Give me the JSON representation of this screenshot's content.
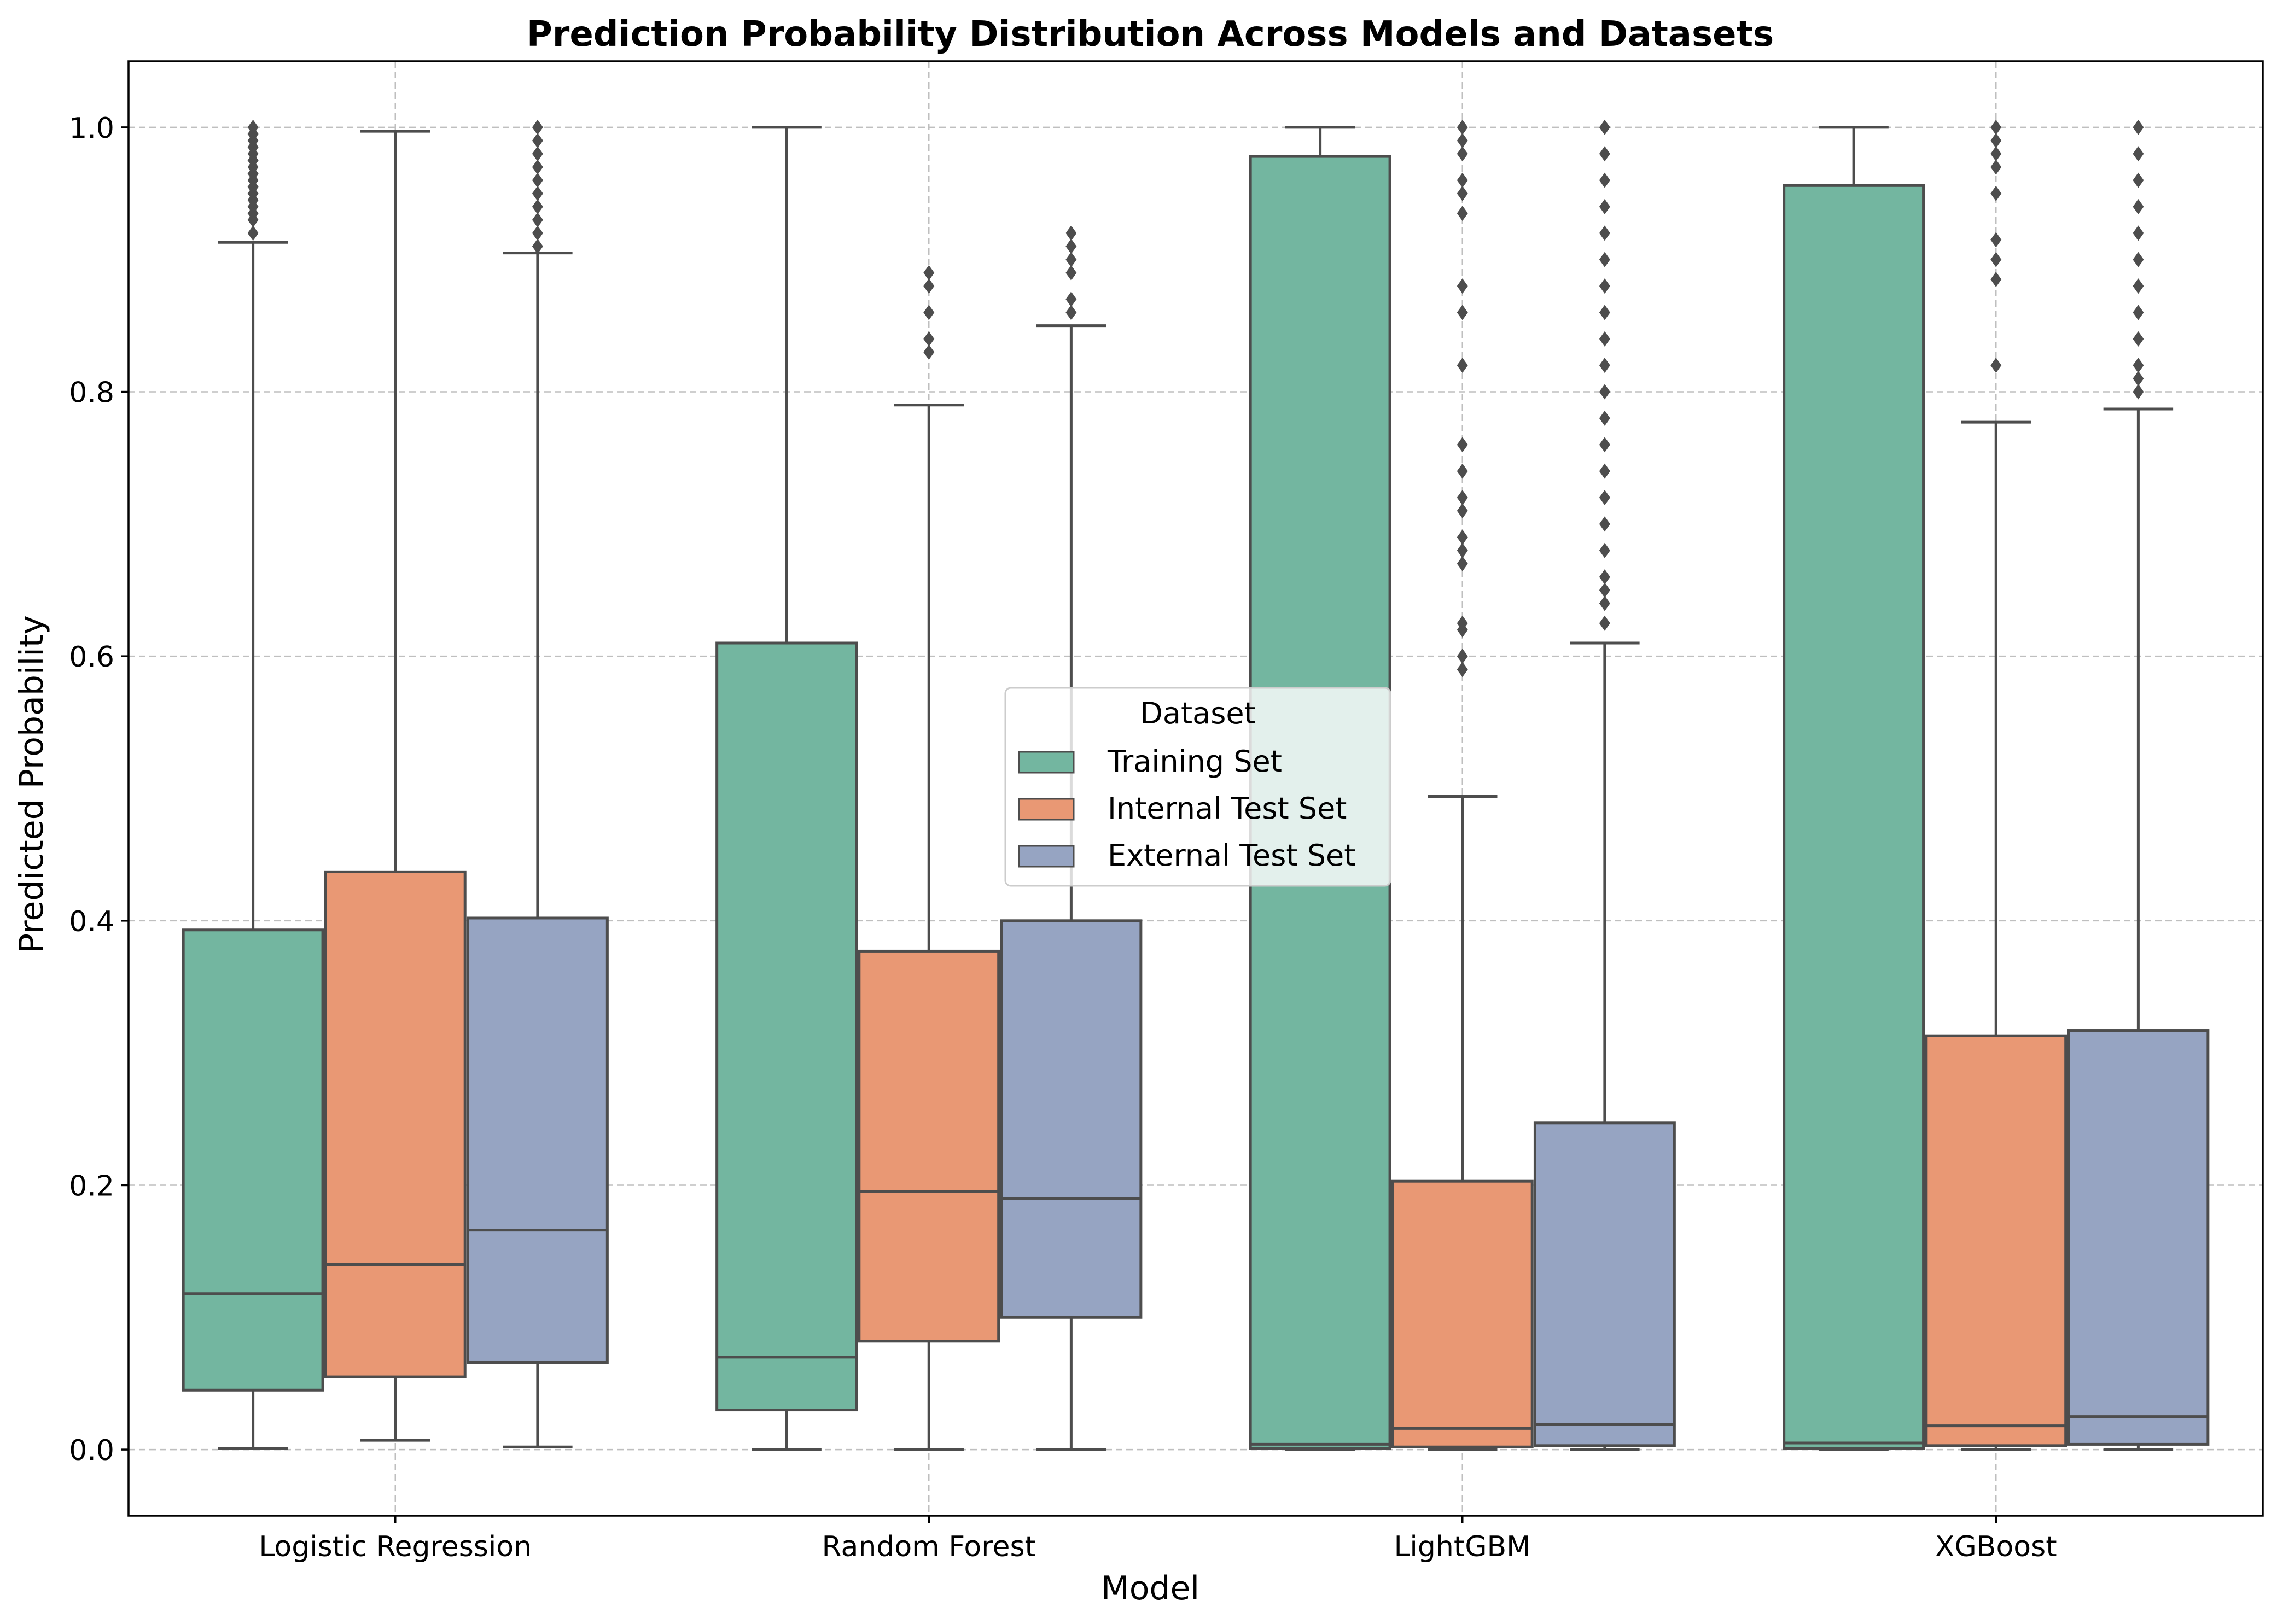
{
  "chart_data": {
    "type": "box",
    "title": "Prediction Probability Distribution Across Models and Datasets",
    "xlabel": "Model",
    "ylabel": "Predicted Probability",
    "ylim": [
      -0.05,
      1.05
    ],
    "yticks": [
      0.0,
      0.2,
      0.4,
      0.6,
      0.8,
      1.0
    ],
    "ytick_labels": [
      "0.0",
      "0.2",
      "0.4",
      "0.6",
      "0.8",
      "1.0"
    ],
    "grid": true,
    "legend": {
      "title": "Dataset",
      "position": "center",
      "entries": [
        "Training Set",
        "Internal Test Set",
        "External Test Set"
      ]
    },
    "colors": {
      "Training Set": "#73b6a0",
      "Internal Test Set": "#e99874",
      "External Test Set": "#96a4c2",
      "edge": "#4d4d4d",
      "grid": "#bfbfbf"
    },
    "categories": [
      "Logistic Regression",
      "Random Forest",
      "LightGBM",
      "XGBoost"
    ],
    "series": [
      {
        "name": "Training Set",
        "boxes": [
          {
            "whislo": 0.001,
            "q1": 0.045,
            "med": 0.118,
            "q3": 0.393,
            "whishi": 0.913,
            "fliers": [
              0.92,
              0.93,
              0.935,
              0.94,
              0.945,
              0.95,
              0.955,
              0.96,
              0.965,
              0.97,
              0.975,
              0.98,
              0.985,
              0.99,
              0.995,
              1.0
            ]
          },
          {
            "whislo": 0.0,
            "q1": 0.03,
            "med": 0.07,
            "q3": 0.61,
            "whishi": 1.0,
            "fliers": []
          },
          {
            "whislo": 0.0,
            "q1": 0.001,
            "med": 0.004,
            "q3": 0.978,
            "whishi": 1.0,
            "fliers": []
          },
          {
            "whislo": 0.0,
            "q1": 0.001,
            "med": 0.005,
            "q3": 0.956,
            "whishi": 1.0,
            "fliers": []
          }
        ]
      },
      {
        "name": "Internal Test Set",
        "boxes": [
          {
            "whislo": 0.007,
            "q1": 0.055,
            "med": 0.14,
            "q3": 0.437,
            "whishi": 0.997,
            "fliers": []
          },
          {
            "whislo": 0.0,
            "q1": 0.082,
            "med": 0.195,
            "q3": 0.377,
            "whishi": 0.79,
            "fliers": [
              0.83,
              0.84,
              0.86,
              0.88,
              0.89
            ]
          },
          {
            "whislo": 0.0,
            "q1": 0.002,
            "med": 0.016,
            "q3": 0.203,
            "whishi": 0.494,
            "fliers": [
              0.59,
              0.6,
              0.62,
              0.625,
              0.67,
              0.68,
              0.69,
              0.71,
              0.72,
              0.74,
              0.76,
              0.82,
              0.86,
              0.88,
              0.935,
              0.95,
              0.96,
              0.98,
              0.99,
              1.0
            ]
          },
          {
            "whislo": 0.0,
            "q1": 0.003,
            "med": 0.018,
            "q3": 0.313,
            "whishi": 0.777,
            "fliers": [
              0.82,
              0.885,
              0.9,
              0.915,
              0.95,
              0.97,
              0.98,
              0.99,
              1.0
            ]
          }
        ]
      },
      {
        "name": "External Test Set",
        "boxes": [
          {
            "whislo": 0.002,
            "q1": 0.066,
            "med": 0.166,
            "q3": 0.402,
            "whishi": 0.905,
            "fliers": [
              0.91,
              0.92,
              0.93,
              0.94,
              0.95,
              0.96,
              0.97,
              0.98,
              0.99,
              1.0
            ]
          },
          {
            "whislo": 0.0,
            "q1": 0.1,
            "med": 0.19,
            "q3": 0.4,
            "whishi": 0.85,
            "fliers": [
              0.86,
              0.87,
              0.89,
              0.9,
              0.91,
              0.92
            ]
          },
          {
            "whislo": 0.0,
            "q1": 0.003,
            "med": 0.019,
            "q3": 0.247,
            "whishi": 0.61,
            "fliers": [
              0.625,
              0.64,
              0.65,
              0.66,
              0.68,
              0.7,
              0.72,
              0.74,
              0.76,
              0.78,
              0.8,
              0.82,
              0.84,
              0.86,
              0.88,
              0.9,
              0.92,
              0.94,
              0.96,
              0.98,
              1.0
            ]
          },
          {
            "whislo": 0.0,
            "q1": 0.004,
            "med": 0.025,
            "q3": 0.317,
            "whishi": 0.787,
            "fliers": [
              0.8,
              0.81,
              0.82,
              0.84,
              0.86,
              0.88,
              0.9,
              0.92,
              0.94,
              0.96,
              0.98,
              1.0
            ]
          }
        ]
      }
    ]
  }
}
